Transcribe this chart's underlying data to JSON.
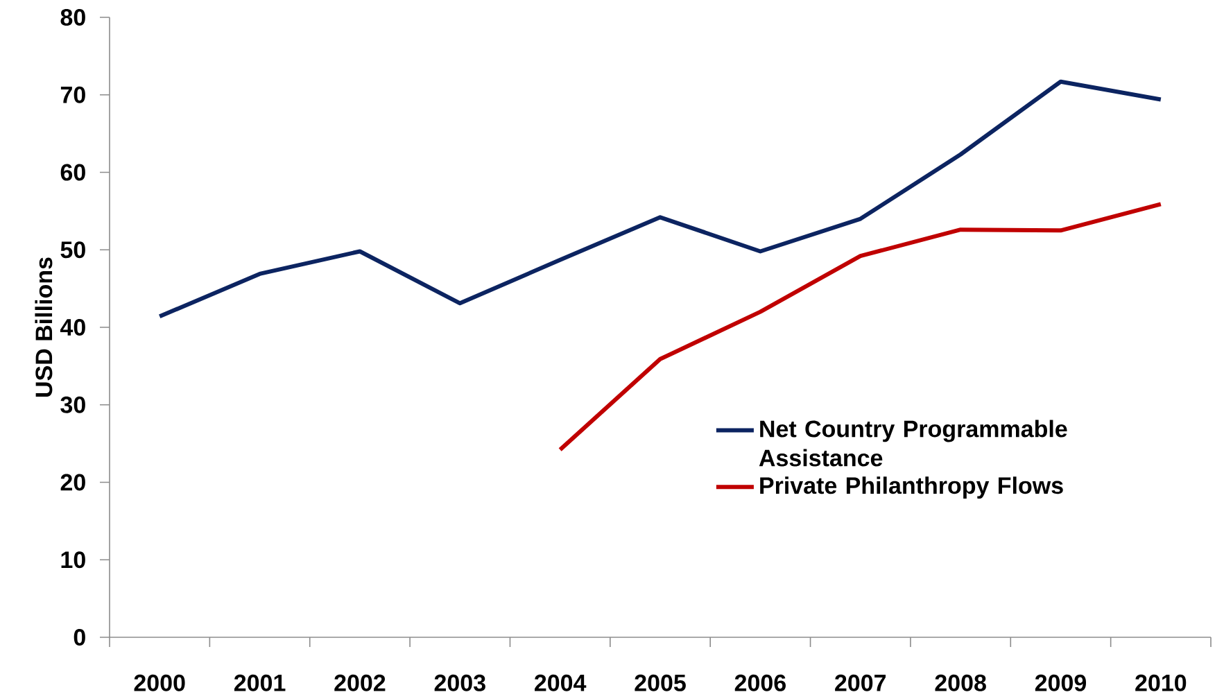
{
  "chart_data": {
    "type": "line",
    "ylabel": "USD Billions",
    "categories": [
      "2000",
      "2001",
      "2002",
      "2003",
      "2004",
      "2005",
      "2006",
      "2007",
      "2008",
      "2009",
      "2010"
    ],
    "series": [
      {
        "name": "Net Country Programmable Assistance",
        "color": "#0c2461",
        "values": [
          41.4,
          46.9,
          49.8,
          43.1,
          48.7,
          54.2,
          49.8,
          54.0,
          62.3,
          71.7,
          69.4
        ]
      },
      {
        "name": "Private Philanthropy Flows",
        "color": "#c00000",
        "values": [
          null,
          null,
          null,
          null,
          24.2,
          35.9,
          42.0,
          49.2,
          52.6,
          52.5,
          55.9
        ]
      }
    ],
    "ylim": [
      0,
      80
    ],
    "yticks": [
      0,
      10,
      20,
      30,
      40,
      50,
      60,
      70,
      80
    ],
    "grid": false,
    "legend": "right",
    "marker": "none",
    "line_style": "solid"
  }
}
